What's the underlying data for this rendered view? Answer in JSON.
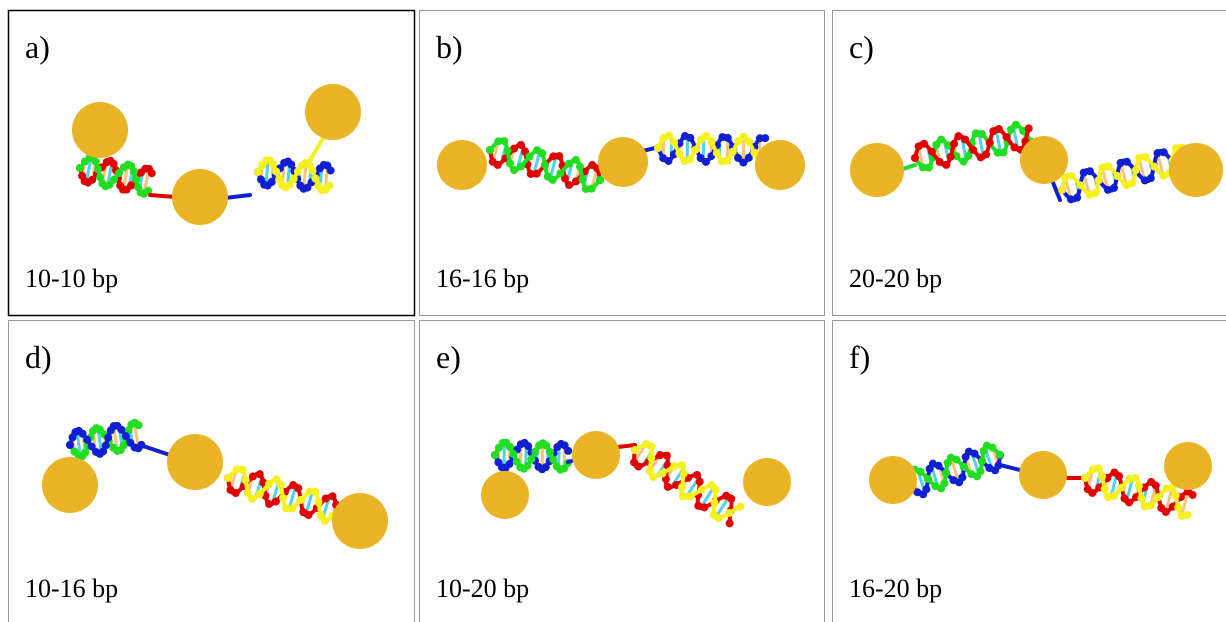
{
  "panels": [
    {
      "label": "a)",
      "caption": "10-10 bp"
    },
    {
      "label": "b)",
      "caption": "16-16 bp"
    },
    {
      "label": "c)",
      "caption": "20-20 bp"
    },
    {
      "label": "d)",
      "caption": "10-16 bp"
    },
    {
      "label": "e)",
      "caption": "10-20 bp"
    },
    {
      "label": "f)",
      "caption": "16-20 bp"
    }
  ]
}
